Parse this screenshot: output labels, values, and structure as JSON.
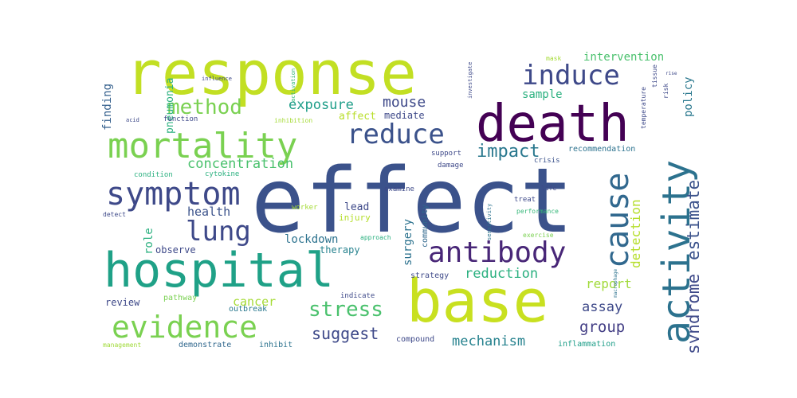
{
  "words": [
    {
      "text": "response",
      "color": "#c2df23"
    },
    {
      "text": "effect",
      "color": "#3b528b"
    },
    {
      "text": "death",
      "color": "#440154"
    },
    {
      "text": "base",
      "color": "#c8e020"
    },
    {
      "text": "hospital",
      "color": "#1fa187"
    },
    {
      "text": "activity",
      "color": "#2c728e"
    },
    {
      "text": "mortality",
      "color": "#7ad151"
    },
    {
      "text": "evidence",
      "color": "#7ad151"
    },
    {
      "text": "symptom",
      "color": "#3e4989"
    },
    {
      "text": "antibody",
      "color": "#482677"
    },
    {
      "text": "cause",
      "color": "#31688e"
    },
    {
      "text": "induce",
      "color": "#3e4989"
    },
    {
      "text": "reduce",
      "color": "#3b528b"
    },
    {
      "text": "lung",
      "color": "#3e4989"
    },
    {
      "text": "method",
      "color": "#7ad151"
    },
    {
      "text": "stress",
      "color": "#4ac16d"
    },
    {
      "text": "impact",
      "color": "#2a788e"
    },
    {
      "text": "estimate",
      "color": "#3b528b"
    },
    {
      "text": "syndrome",
      "color": "#3e4989"
    },
    {
      "text": "concentration",
      "color": "#4ac16d"
    },
    {
      "text": "mouse",
      "color": "#3e4989"
    },
    {
      "text": "exposure",
      "color": "#1f9e89"
    },
    {
      "text": "suggest",
      "color": "#3e4989"
    },
    {
      "text": "group",
      "color": "#433e85"
    },
    {
      "text": "mechanism",
      "color": "#26828e"
    },
    {
      "text": "reduction",
      "color": "#2ab07f"
    },
    {
      "text": "assay",
      "color": "#3e4989"
    },
    {
      "text": "detection",
      "color": "#b5de2b"
    },
    {
      "text": "report",
      "color": "#a0da39"
    },
    {
      "text": "health",
      "color": "#3b528b"
    },
    {
      "text": "policy",
      "color": "#2a788e"
    },
    {
      "text": "finding",
      "color": "#35608d"
    },
    {
      "text": "pneumonia",
      "color": "#2ab07f"
    },
    {
      "text": "sample",
      "color": "#2ab07f"
    },
    {
      "text": "intervention",
      "color": "#4ac16d"
    },
    {
      "text": "lockdown",
      "color": "#2c728e"
    },
    {
      "text": "cancer",
      "color": "#a5db36"
    },
    {
      "text": "role",
      "color": "#2ab07f"
    },
    {
      "text": "surgery",
      "color": "#2c728e"
    },
    {
      "text": "affect",
      "color": "#b8de29"
    },
    {
      "text": "mediate",
      "color": "#3e4989"
    },
    {
      "text": "lead",
      "color": "#3e4989"
    },
    {
      "text": "review",
      "color": "#3e4989"
    },
    {
      "text": "therapy",
      "color": "#26828e"
    },
    {
      "text": "observe",
      "color": "#3e4989"
    },
    {
      "text": "demonstrate",
      "color": "#31688e"
    },
    {
      "text": "inhibit",
      "color": "#2c728e"
    },
    {
      "text": "injury",
      "color": "#b5de2b"
    },
    {
      "text": "strategy",
      "color": "#3e4989"
    },
    {
      "text": "community",
      "color": "#31688e"
    },
    {
      "text": "inflammation",
      "color": "#1f9e89"
    },
    {
      "text": "compound",
      "color": "#3e4989"
    },
    {
      "text": "outbreak",
      "color": "#2a788e"
    },
    {
      "text": "pathway",
      "color": "#7ad151"
    },
    {
      "text": "indicate",
      "color": "#3e4989"
    },
    {
      "text": "management",
      "color": "#a0da39"
    },
    {
      "text": "recommendation",
      "color": "#2c728e"
    },
    {
      "text": "crisis",
      "color": "#3b528b"
    },
    {
      "text": "damage",
      "color": "#3e4989"
    },
    {
      "text": "support",
      "color": "#3e4989"
    },
    {
      "text": "examine",
      "color": "#3e4989"
    },
    {
      "text": "treat",
      "color": "#3e4989"
    },
    {
      "text": "life",
      "color": "#3e4989"
    },
    {
      "text": "performance",
      "color": "#35b779"
    },
    {
      "text": "exercise",
      "color": "#7ad151"
    },
    {
      "text": "sensitivity",
      "color": "#2c728e"
    },
    {
      "text": "approach",
      "color": "#2ab07f"
    },
    {
      "text": "worker",
      "color": "#a5db36"
    },
    {
      "text": "detect",
      "color": "#3e4989"
    },
    {
      "text": "condition",
      "color": "#2ab07f"
    },
    {
      "text": "cytokine",
      "color": "#2ab07f"
    },
    {
      "text": "function",
      "color": "#3e4989"
    },
    {
      "text": "inhibition",
      "color": "#a5db36"
    },
    {
      "text": "acid",
      "color": "#3e4989"
    },
    {
      "text": "influence",
      "color": "#3e4989"
    },
    {
      "text": "activation",
      "color": "#35b779"
    },
    {
      "text": "investigate",
      "color": "#3e4989"
    },
    {
      "text": "mask",
      "color": "#a5db36"
    },
    {
      "text": "risk",
      "color": "#3e4989"
    },
    {
      "text": "tissue",
      "color": "#3e4989"
    },
    {
      "text": "temperature",
      "color": "#3e4989"
    },
    {
      "text": "experience",
      "color": "#a5db36"
    },
    {
      "text": "macrophage",
      "color": "#2c728e"
    },
    {
      "text": "rise",
      "color": "#3e4989"
    }
  ]
}
